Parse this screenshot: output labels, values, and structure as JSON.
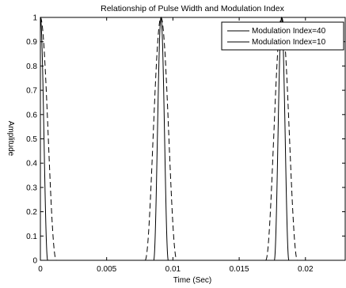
{
  "chart_data": {
    "type": "line",
    "title": "Relationship of Pulse Width and Modulation Index",
    "xlabel": "Time (Sec)",
    "ylabel": "Amplitude",
    "xlim": [
      0,
      0.023
    ],
    "ylim": [
      0,
      1
    ],
    "x_ticks": [
      0,
      0.005,
      0.01,
      0.015,
      0.02
    ],
    "x_tick_labels": [
      "0",
      "0.005",
      "0.01",
      "0.015",
      "0.02"
    ],
    "y_ticks": [
      0,
      0.1,
      0.2,
      0.3,
      0.4,
      0.5,
      0.6,
      0.7,
      0.8,
      0.9,
      1
    ],
    "y_tick_labels": [
      "0",
      "0.1",
      "0.2",
      "0.3",
      "0.4",
      "0.5",
      "0.6",
      "0.7",
      "0.8",
      "0.9",
      "1"
    ],
    "grid": false,
    "legend_position": "top-right",
    "pulse_peak_times": [
      0,
      0.0091,
      0.0182
    ],
    "series": [
      {
        "name": "Modulation Index=40",
        "line_style": "solid",
        "color": "#000000",
        "half_width_at_zero": 0.00055,
        "x": [
          -0.0008,
          -0.0006,
          -0.0004,
          -0.0002,
          0,
          0.0002,
          0.0004,
          0.0006,
          0.0008,
          0.0085,
          0.0087,
          0.0089,
          0.0091,
          0.0093,
          0.0095,
          0.0097,
          0.0176,
          0.0178,
          0.018,
          0.0182,
          0.0184,
          0.0186,
          0.0188
        ],
        "y": [
          0,
          0,
          0.12,
          0.65,
          1,
          0.65,
          0.12,
          0,
          0,
          0,
          0.12,
          0.65,
          1,
          0.65,
          0.12,
          0,
          0,
          0.12,
          0.65,
          1,
          0.65,
          0.12,
          0
        ]
      },
      {
        "name": "Modulation Index=10",
        "line_style": "dashed",
        "color": "#000000",
        "half_width_at_zero": 0.0012,
        "x": [
          -0.0014,
          -0.001,
          -0.0006,
          -0.0003,
          0,
          0.0003,
          0.0006,
          0.001,
          0.0014,
          0.0078,
          0.0082,
          0.0086,
          0.0091,
          0.0096,
          0.01,
          0.0104,
          0.0168,
          0.0172,
          0.0177,
          0.0182,
          0.0187,
          0.0192,
          0.0196
        ],
        "y": [
          0,
          0.08,
          0.45,
          0.85,
          1,
          0.85,
          0.45,
          0.08,
          0,
          0,
          0.08,
          0.45,
          1,
          0.45,
          0.08,
          0,
          0,
          0.08,
          0.45,
          1,
          0.45,
          0.08,
          0
        ]
      }
    ]
  }
}
